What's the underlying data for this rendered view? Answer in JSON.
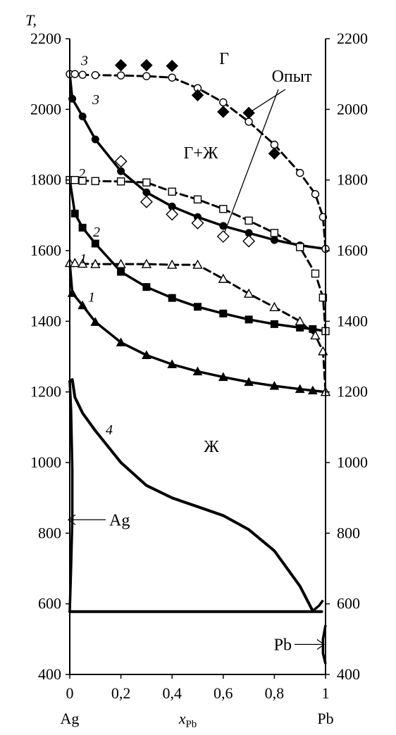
{
  "chart_data": {
    "type": "line",
    "ylabel": "T,",
    "xlabel": {
      "main": "x",
      "sub": "Pb"
    },
    "x_end_labels": {
      "left": "Ag",
      "right": "Pb"
    },
    "xlim": [
      0,
      1
    ],
    "ylim": [
      400,
      2200
    ],
    "xticks": [
      {
        "v": 0,
        "label": "0"
      },
      {
        "v": 0.2,
        "label": "0,2"
      },
      {
        "v": 0.4,
        "label": "0,4"
      },
      {
        "v": 0.6,
        "label": "0,6"
      },
      {
        "v": 0.8,
        "label": "0,8"
      },
      {
        "v": 1,
        "label": "1"
      }
    ],
    "yticks": [
      400,
      600,
      800,
      1000,
      1200,
      1400,
      1600,
      1800,
      2000,
      2200
    ],
    "regions": [
      "Г",
      "Г+Ж",
      "Ж"
    ],
    "annotations": {
      "experiment": "Опыт",
      "ag": "Ag",
      "pb": "Pb"
    },
    "curve_labels": [
      "1",
      "1",
      "2",
      "2",
      "3",
      "3",
      "4"
    ],
    "series": [
      {
        "name": "3",
        "kind": "liquidus",
        "style": "solid",
        "marker": "filled-circle",
        "points": [
          [
            0,
            2100
          ],
          [
            0.01,
            2030
          ],
          [
            0.05,
            1980
          ],
          [
            0.1,
            1915
          ],
          [
            0.2,
            1825
          ],
          [
            0.3,
            1765
          ],
          [
            0.4,
            1725
          ],
          [
            0.5,
            1695
          ],
          [
            0.6,
            1670
          ],
          [
            0.7,
            1650
          ],
          [
            0.8,
            1630
          ],
          [
            0.9,
            1615
          ],
          [
            1,
            1605
          ]
        ]
      },
      {
        "name": "3",
        "kind": "vapor",
        "style": "dashed",
        "marker": "open-circle",
        "points": [
          [
            0,
            2100
          ],
          [
            0.02,
            2100
          ],
          [
            0.05,
            2098
          ],
          [
            0.1,
            2097
          ],
          [
            0.2,
            2096
          ],
          [
            0.3,
            2094
          ],
          [
            0.4,
            2090
          ],
          [
            0.5,
            2060
          ],
          [
            0.6,
            2020
          ],
          [
            0.7,
            1965
          ],
          [
            0.8,
            1900
          ],
          [
            0.9,
            1820
          ],
          [
            0.96,
            1760
          ],
          [
            0.99,
            1695
          ],
          [
            1,
            1605
          ]
        ]
      },
      {
        "name": "2",
        "kind": "liquidus",
        "style": "solid",
        "marker": "filled-square",
        "points": [
          [
            0,
            1800
          ],
          [
            0.02,
            1705
          ],
          [
            0.05,
            1665
          ],
          [
            0.1,
            1620
          ],
          [
            0.2,
            1540
          ],
          [
            0.3,
            1497
          ],
          [
            0.4,
            1466
          ],
          [
            0.5,
            1441
          ],
          [
            0.6,
            1422
          ],
          [
            0.7,
            1405
          ],
          [
            0.8,
            1392
          ],
          [
            0.9,
            1382
          ],
          [
            0.95,
            1378
          ],
          [
            1,
            1372
          ]
        ]
      },
      {
        "name": "2",
        "kind": "vapor",
        "style": "dashed",
        "marker": "open-square",
        "points": [
          [
            0,
            1800
          ],
          [
            0.02,
            1800
          ],
          [
            0.05,
            1798
          ],
          [
            0.1,
            1797
          ],
          [
            0.2,
            1796
          ],
          [
            0.3,
            1793
          ],
          [
            0.4,
            1767
          ],
          [
            0.5,
            1745
          ],
          [
            0.6,
            1718
          ],
          [
            0.7,
            1685
          ],
          [
            0.8,
            1650
          ],
          [
            0.9,
            1610
          ],
          [
            0.96,
            1535
          ],
          [
            0.99,
            1467
          ],
          [
            1,
            1372
          ]
        ]
      },
      {
        "name": "1",
        "kind": "liquidus",
        "style": "solid",
        "marker": "filled-triangle",
        "points": [
          [
            0,
            1565
          ],
          [
            0.01,
            1480
          ],
          [
            0.05,
            1445
          ],
          [
            0.1,
            1398
          ],
          [
            0.2,
            1340
          ],
          [
            0.3,
            1304
          ],
          [
            0.4,
            1278
          ],
          [
            0.5,
            1258
          ],
          [
            0.6,
            1242
          ],
          [
            0.7,
            1228
          ],
          [
            0.8,
            1217
          ],
          [
            0.9,
            1208
          ],
          [
            0.95,
            1204
          ],
          [
            1,
            1200
          ]
        ]
      },
      {
        "name": "1",
        "kind": "vapor",
        "style": "dashed",
        "marker": "open-triangle",
        "points": [
          [
            0,
            1565
          ],
          [
            0.02,
            1565
          ],
          [
            0.05,
            1563
          ],
          [
            0.1,
            1562
          ],
          [
            0.2,
            1562
          ],
          [
            0.3,
            1562
          ],
          [
            0.4,
            1560
          ],
          [
            0.5,
            1560
          ],
          [
            0.6,
            1520
          ],
          [
            0.7,
            1478
          ],
          [
            0.8,
            1440
          ],
          [
            0.9,
            1400
          ],
          [
            0.96,
            1360
          ],
          [
            0.99,
            1315
          ],
          [
            1,
            1200
          ]
        ]
      },
      {
        "name": "Опыт",
        "kind": "experiment-filled",
        "style": "none",
        "marker": "filled-diamond",
        "points": [
          [
            0.2,
            2125
          ],
          [
            0.3,
            2125
          ],
          [
            0.4,
            2123
          ],
          [
            0.5,
            2040
          ],
          [
            0.6,
            1993
          ],
          [
            0.7,
            1990
          ],
          [
            0.8,
            1875
          ]
        ]
      },
      {
        "name": "Опыт",
        "kind": "experiment-open",
        "style": "none",
        "marker": "open-diamond",
        "points": [
          [
            0.2,
            1853
          ],
          [
            0.3,
            1738
          ],
          [
            0.4,
            1703
          ],
          [
            0.5,
            1678
          ],
          [
            0.6,
            1640
          ],
          [
            0.7,
            1627
          ]
        ]
      },
      {
        "name": "4",
        "kind": "phase-diagram",
        "style": "solid",
        "marker": "none",
        "points": [
          [
            0,
            1230
          ],
          [
            0.01,
            1235
          ],
          [
            0.02,
            1185
          ],
          [
            0.05,
            1140
          ],
          [
            0.1,
            1090
          ],
          [
            0.2,
            1000
          ],
          [
            0.3,
            935
          ],
          [
            0.4,
            900
          ],
          [
            0.5,
            875
          ],
          [
            0.6,
            850
          ],
          [
            0.7,
            810
          ],
          [
            0.8,
            750
          ],
          [
            0.9,
            650
          ],
          [
            0.95,
            580
          ]
        ]
      },
      {
        "name": "eutectic",
        "kind": "phase-diagram",
        "style": "solid",
        "marker": "none",
        "points": [
          [
            0,
            578
          ],
          [
            0.985,
            578
          ]
        ]
      }
    ]
  }
}
